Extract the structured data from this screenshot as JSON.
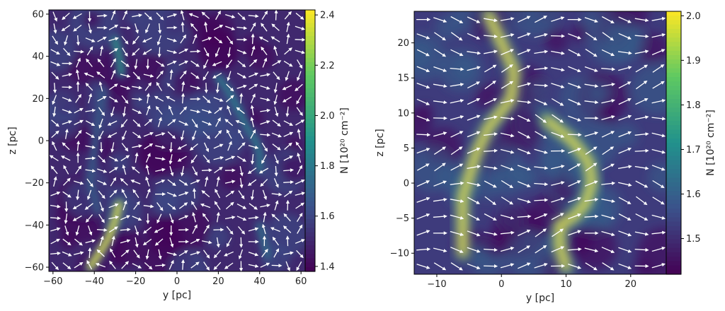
{
  "chart_data": [
    {
      "type": "heatmap",
      "description_of_field": "column density map with magnetic-field direction vectors",
      "xlabel": "y [pc]",
      "ylabel": "z [pc]",
      "xlim": [
        -62,
        62
      ],
      "ylim": [
        -62,
        62
      ],
      "xticks": [
        -60,
        -40,
        -20,
        0,
        20,
        40,
        60
      ],
      "yticks": [
        -60,
        -40,
        -20,
        0,
        20,
        40,
        60
      ],
      "xtick_labels": [
        "−60",
        "−40",
        "−20",
        "0",
        "20",
        "40",
        "60"
      ],
      "ytick_labels": [
        "−60",
        "−40",
        "−20",
        "0",
        "20",
        "40",
        "60"
      ],
      "colorbar": {
        "label": "N [10²⁰ cm⁻²]",
        "range": [
          1.38,
          2.42
        ],
        "ticks": [
          1.4,
          1.6,
          1.8,
          2.0,
          2.2,
          2.4
        ],
        "tick_labels": [
          "1.4",
          "1.6",
          "1.8",
          "2.0",
          "2.2",
          "2.4"
        ],
        "colormap": [
          "#440154",
          "#3b528b",
          "#21918c",
          "#5ec962",
          "#fde725"
        ]
      },
      "filaments": [
        {
          "peak": 2.4,
          "path": [
            [
              -42,
              -60
            ],
            [
              -38,
              -54
            ],
            [
              -33,
              -46
            ],
            [
              -30,
              -38
            ],
            [
              -28,
              -30
            ]
          ]
        },
        {
          "peak": 1.95,
          "path": [
            [
              -30,
              48
            ],
            [
              -28,
              40
            ],
            [
              -27,
              32
            ]
          ]
        },
        {
          "peak": 1.85,
          "path": [
            [
              20,
              30
            ],
            [
              26,
              22
            ],
            [
              30,
              14
            ],
            [
              34,
              6
            ],
            [
              38,
              0
            ],
            [
              40,
              -6
            ],
            [
              40,
              -14
            ]
          ]
        },
        {
          "peak": 1.8,
          "path": [
            [
              40,
              -40
            ],
            [
              42,
              -48
            ],
            [
              44,
              -55
            ]
          ]
        },
        {
          "peak": 1.72,
          "path": [
            [
              -36,
              24
            ],
            [
              -38,
              10
            ],
            [
              -40,
              -4
            ],
            [
              -42,
              -20
            ],
            [
              -38,
              -34
            ]
          ]
        }
      ],
      "vector_field": "varies",
      "grid": false
    },
    {
      "type": "heatmap",
      "description_of_field": "zoomed column density map with magnetic-field direction vectors",
      "xlabel": "y [pc]",
      "ylabel": "z [pc]",
      "xlim": [
        -13.5,
        25.5
      ],
      "ylim": [
        -13,
        24.5
      ],
      "xticks": [
        -10,
        0,
        10,
        20
      ],
      "yticks": [
        -10,
        -5,
        0,
        5,
        10,
        15,
        20
      ],
      "xtick_labels": [
        "−10",
        "0",
        "10",
        "20"
      ],
      "ytick_labels": [
        "−10",
        "−5",
        "0",
        "5",
        "10",
        "15",
        "20"
      ],
      "colorbar": {
        "label": "N [10²⁰ cm⁻²]",
        "range": [
          1.42,
          2.01
        ],
        "ticks": [
          1.5,
          1.6,
          1.7,
          1.8,
          1.9,
          2.0
        ],
        "tick_labels": [
          "1.5",
          "1.6",
          "1.7",
          "1.8",
          "1.9",
          "2.0"
        ],
        "colormap": [
          "#440154",
          "#3b528b",
          "#21918c",
          "#5ec962",
          "#fde725"
        ]
      },
      "filaments": [
        {
          "peak": 2.0,
          "path": [
            [
              -2,
              24
            ],
            [
              0,
              20
            ],
            [
              2,
              16
            ],
            [
              1.5,
              12
            ],
            [
              -2,
              8
            ],
            [
              -4,
              4
            ],
            [
              -6,
              -2
            ],
            [
              -6,
              -10
            ]
          ]
        },
        {
          "peak": 2.0,
          "path": [
            [
              7,
              9
            ],
            [
              11,
              6
            ],
            [
              13.5,
              3
            ],
            [
              14,
              0
            ],
            [
              13,
              -3
            ],
            [
              11,
              -5
            ],
            [
              9,
              -6
            ],
            [
              9,
              -9
            ],
            [
              10,
              -12
            ]
          ]
        }
      ],
      "vector_field": "mostly-horizontal",
      "grid": false
    }
  ]
}
